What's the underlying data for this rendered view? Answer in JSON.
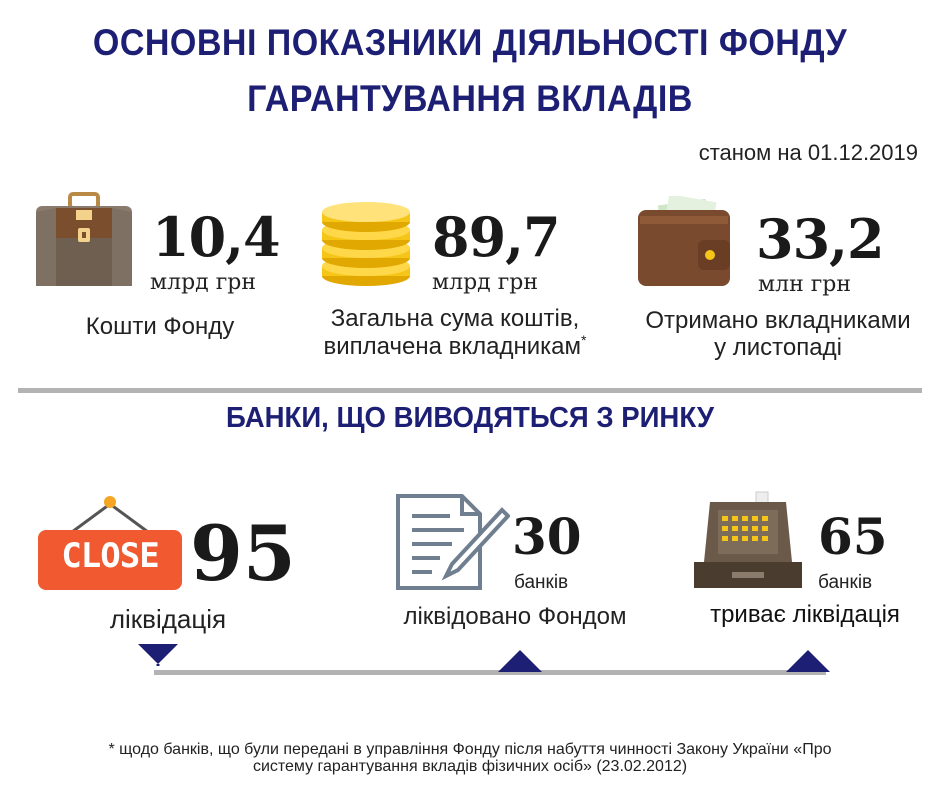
{
  "header": {
    "title_line1": "ОСНОВНІ ПОКАЗНИКИ ДІЯЛЬНОСТІ ФОНДУ",
    "title_line2": "ГАРАНТУВАННЯ ВКЛАДІВ",
    "date": "станом на 01.12.2019"
  },
  "stats": [
    {
      "value": "10,4",
      "unit": "млрд грн",
      "label_line1": "Кошти Фонду",
      "label_line2": "",
      "icon": "briefcase-icon"
    },
    {
      "value": "89,7",
      "unit": "млрд грн",
      "label_line1": "Загальна сума коштів,",
      "label_line2": "виплачена вкладникам",
      "mark": "*",
      "icon": "coins-icon"
    },
    {
      "value": "33,2",
      "unit": "млн грн",
      "label_line1": "Отримано вкладниками",
      "label_line2": "у листопаді",
      "icon": "wallet-icon"
    }
  ],
  "banks_section": {
    "title": "БАНКИ, ЩО ВИВОДЯТЬСЯ З РИНКУ",
    "items": [
      {
        "value": "95",
        "unit": "",
        "label": "ліквідація",
        "icon": "close-sign-icon",
        "sign_text": "CLOSE"
      },
      {
        "value": "30",
        "unit": "банків",
        "label": "ліквідовано Фондом",
        "icon": "document-pen-icon"
      },
      {
        "value": "65",
        "unit": "банків",
        "label": "триває ліквідація",
        "icon": "cash-register-icon"
      }
    ]
  },
  "colors": {
    "title": "#1d1f74",
    "close_sign": "#f15a30",
    "coin": "#f5c518",
    "briefcase": "#7b6a5a",
    "wallet": "#7a4a2e",
    "marker": "#1d1f74"
  },
  "footnote": {
    "line1": "* щодо банків, що були передані в управління Фонду після набуття чинності Закону України «Про",
    "line2": "систему гарантування вкладів фізичних осіб» (23.02.2012)"
  }
}
